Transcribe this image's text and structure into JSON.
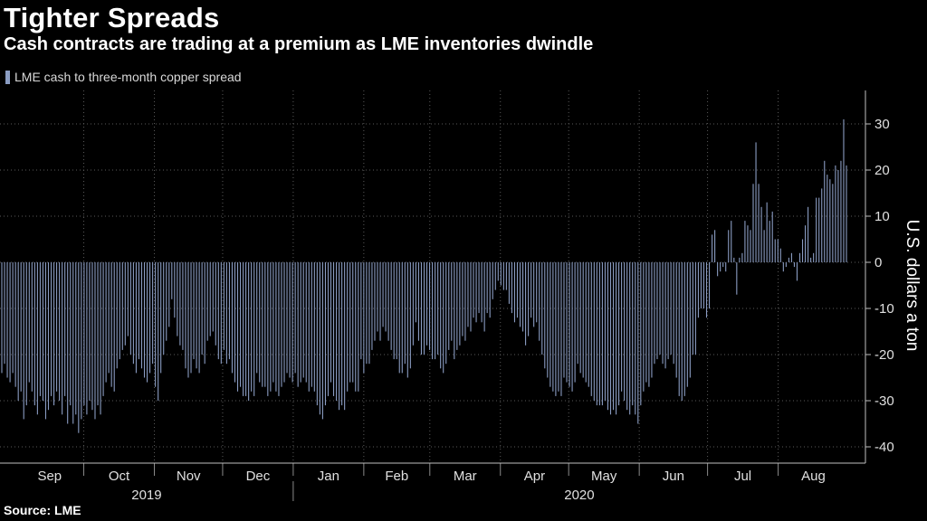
{
  "header": {
    "title": "Tighter Spreads",
    "subtitle": "Cash contracts are trading at a premium as LME inventories dwindle",
    "legend_label": "LME cash to three-month copper spread",
    "source": "Source: LME"
  },
  "colors": {
    "background": "#000000",
    "bar": "#8a9cc2",
    "grid": "#5a5a5a",
    "text": "#ffffff"
  },
  "chart_data": {
    "type": "bar",
    "title": "Tighter Spreads",
    "subtitle": "Cash contracts are trading at a premium as LME inventories dwindle",
    "xlabel": "",
    "ylabel": "U.S. dollars a ton",
    "ylim": [
      -45,
      37
    ],
    "y_ticks": [
      30,
      20,
      10,
      0,
      -10,
      -20,
      -30,
      -40
    ],
    "y_axis_position": "right",
    "grid": true,
    "legend_position": "top-left",
    "x_range": [
      "2019-08-26",
      "2020-08-31"
    ],
    "month_labels": [
      "Sep",
      "Oct",
      "Nov",
      "Dec",
      "Jan",
      "Feb",
      "Mar",
      "Apr",
      "May",
      "Jun",
      "Jul",
      "Aug"
    ],
    "year_labels": [
      "2019",
      "2020"
    ],
    "series": [
      {
        "name": "LME cash to three-month copper spread",
        "values": [
          -24,
          -22,
          -25,
          -26,
          -24,
          -27,
          -30,
          -28,
          -34,
          -31,
          -26,
          -28,
          -31,
          -33,
          -29,
          -30,
          -34,
          -32,
          -29,
          -31,
          -28,
          -30,
          -33,
          -29,
          -35,
          -31,
          -35,
          -33,
          -37,
          -34,
          -31,
          -33,
          -30,
          -32,
          -34,
          -31,
          -33,
          -29,
          -26,
          -24,
          -27,
          -28,
          -23,
          -21,
          -19,
          -18,
          -16,
          -20,
          -22,
          -24,
          -21,
          -23,
          -25,
          -26,
          -24,
          -22,
          -27,
          -30,
          -24,
          -20,
          -17,
          -14,
          -8,
          -12,
          -16,
          -18,
          -19,
          -23,
          -25,
          -24,
          -21,
          -23,
          -24,
          -20,
          -22,
          -17,
          -16,
          -15,
          -18,
          -21,
          -22,
          -19,
          -22,
          -21,
          -24,
          -26,
          -28,
          -27,
          -29,
          -29,
          -30,
          -28,
          -29,
          -24,
          -26,
          -27,
          -27,
          -29,
          -28,
          -26,
          -28,
          -29,
          -27,
          -26,
          -24,
          -25,
          -26,
          -24,
          -27,
          -26,
          -25,
          -26,
          -28,
          -27,
          -28,
          -31,
          -33,
          -34,
          -31,
          -29,
          -26,
          -29,
          -30,
          -32,
          -31,
          -32,
          -28,
          -26,
          -26,
          -28,
          -28,
          -21,
          -24,
          -22,
          -22,
          -19,
          -17,
          -15,
          -17,
          -14,
          -15,
          -17,
          -19,
          -21,
          -21,
          -24,
          -24,
          -22,
          -25,
          -23,
          -18,
          -13,
          -17,
          -20,
          -20,
          -18,
          -19,
          -21,
          -21,
          -20,
          -23,
          -24,
          -22,
          -19,
          -17,
          -21,
          -19,
          -18,
          -16,
          -17,
          -14,
          -15,
          -12,
          -13,
          -11,
          -13,
          -15,
          -11,
          -12,
          -8,
          -6,
          -4,
          -5,
          -6,
          -6,
          -9,
          -11,
          -13,
          -12,
          -14,
          -15,
          -18,
          -16,
          -12,
          -14,
          -13,
          -17,
          -20,
          -23,
          -25,
          -27,
          -28,
          -29,
          -28,
          -29,
          -25,
          -26,
          -27,
          -28,
          -26,
          -22,
          -24,
          -25,
          -26,
          -27,
          -29,
          -30,
          -31,
          -31,
          -31,
          -30,
          -32,
          -33,
          -32,
          -33,
          -31,
          -28,
          -30,
          -32,
          -33,
          -31,
          -33,
          -35,
          -31,
          -28,
          -26,
          -27,
          -25,
          -22,
          -21,
          -20,
          -22,
          -23,
          -21,
          -20,
          -22,
          -25,
          -29,
          -30,
          -29,
          -27,
          -25,
          -20,
          -20,
          -12,
          -10,
          -10,
          -12,
          -10,
          6,
          7,
          -3,
          -2,
          -1,
          -2,
          7,
          9,
          1,
          -7,
          1,
          2,
          9,
          8,
          7,
          17,
          26,
          17,
          12,
          7,
          13,
          9,
          11,
          5,
          5,
          3,
          -2,
          -1,
          1,
          2,
          -1,
          -4,
          2,
          5,
          8,
          12,
          1,
          2,
          14,
          14,
          16,
          22,
          19,
          18,
          17,
          21,
          20,
          22,
          31,
          21
        ]
      }
    ]
  }
}
